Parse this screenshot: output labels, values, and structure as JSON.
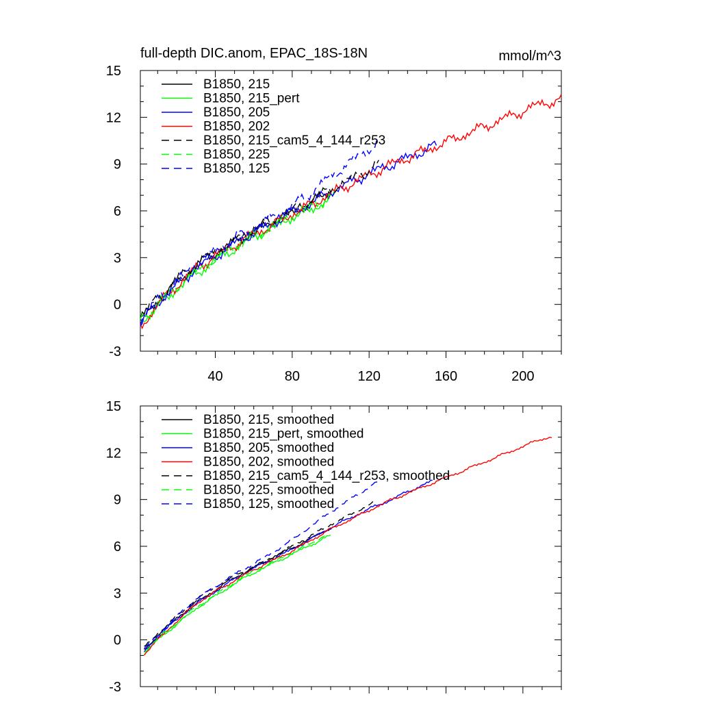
{
  "chart_data": [
    {
      "type": "line",
      "title": "full-depth DIC.anom, EPAC_18S-18N",
      "units_label": "mmol/m^3",
      "xlim": [
        1,
        220
      ],
      "ylim": [
        -3,
        15
      ],
      "x_ticks": [
        40,
        80,
        120,
        160,
        200
      ],
      "y_ticks": [
        -3,
        0,
        3,
        6,
        9,
        12,
        15
      ],
      "x_tick_labels": [
        "40",
        "80",
        "120",
        "160",
        "200"
      ],
      "y_tick_labels": [
        "-3",
        "0",
        "3",
        "6",
        "9",
        "12",
        "15"
      ],
      "legend_position": "top-left",
      "smoothed": false,
      "series": [
        {
          "name": "B1850, 215",
          "color": "#000000",
          "dash": "solid",
          "x": [
            1,
            10,
            20,
            30,
            40,
            50,
            60,
            70,
            80,
            90,
            100
          ],
          "y": [
            -1.0,
            0.2,
            1.4,
            2.5,
            3.3,
            4.0,
            4.7,
            5.3,
            5.9,
            6.5,
            7.3
          ]
        },
        {
          "name": "B1850, 215_pert",
          "color": "#00ff00",
          "dash": "solid",
          "x": [
            1,
            10,
            20,
            30,
            40,
            50,
            60,
            70,
            80,
            90,
            102
          ],
          "y": [
            -1.2,
            -0.1,
            1.0,
            2.0,
            2.8,
            3.6,
            4.3,
            5.0,
            5.6,
            6.1,
            6.9
          ]
        },
        {
          "name": "B1850, 205",
          "color": "#0000ff",
          "dash": "solid",
          "x": [
            1,
            10,
            20,
            30,
            40,
            50,
            60,
            70,
            80,
            90,
            100,
            110,
            120,
            130,
            140,
            155
          ],
          "y": [
            -1.3,
            0.1,
            1.2,
            2.3,
            3.1,
            3.9,
            4.6,
            5.2,
            5.9,
            6.5,
            7.2,
            7.8,
            8.4,
            8.9,
            9.4,
            10.2
          ]
        },
        {
          "name": "B1850, 202",
          "color": "#ff0000",
          "dash": "solid",
          "x": [
            1,
            10,
            20,
            30,
            40,
            50,
            60,
            70,
            80,
            90,
            100,
            110,
            120,
            130,
            140,
            150,
            160,
            170,
            180,
            190,
            200,
            210,
            220
          ],
          "y": [
            -1.5,
            0.0,
            1.2,
            2.3,
            3.1,
            3.8,
            4.5,
            5.1,
            5.8,
            6.4,
            7.1,
            7.7,
            8.3,
            8.9,
            9.4,
            9.9,
            10.4,
            10.9,
            11.4,
            11.9,
            12.4,
            12.9,
            13.1
          ]
        },
        {
          "name": "B1850, 215_cam5_4_144_r253",
          "color": "#000000",
          "dash": "dash",
          "x": [
            1,
            10,
            20,
            30,
            40,
            50,
            60,
            70,
            80,
            90,
            100,
            110,
            120,
            125
          ],
          "y": [
            -0.8,
            0.4,
            1.6,
            2.6,
            3.4,
            4.1,
            4.8,
            5.4,
            6.0,
            6.7,
            7.4,
            8.0,
            8.7,
            9.0
          ]
        },
        {
          "name": "B1850, 225",
          "color": "#00ff00",
          "dash": "dash",
          "x": [
            1,
            10,
            20,
            30,
            40,
            50,
            60,
            70,
            80,
            90,
            100
          ],
          "y": [
            -1.1,
            0.0,
            1.1,
            2.1,
            2.9,
            3.7,
            4.4,
            5.0,
            5.7,
            6.2,
            7.0
          ]
        },
        {
          "name": "B1850, 125",
          "color": "#0000ff",
          "dash": "dash",
          "x": [
            1,
            10,
            20,
            30,
            40,
            50,
            60,
            70,
            80,
            90,
            100,
            110,
            120,
            125
          ],
          "y": [
            -1.0,
            0.3,
            1.5,
            2.6,
            3.4,
            4.2,
            4.9,
            5.6,
            6.3,
            7.2,
            8.2,
            9.1,
            10.0,
            10.4
          ]
        }
      ]
    },
    {
      "type": "line",
      "title": "",
      "xlim": [
        1,
        220
      ],
      "ylim": [
        -3,
        15
      ],
      "y_ticks": [
        -3,
        0,
        3,
        6,
        9,
        12,
        15
      ],
      "y_tick_labels": [
        "-3",
        "0",
        "3",
        "6",
        "9",
        "12",
        "15"
      ],
      "legend_position": "top-left",
      "smoothed": true,
      "series": [
        {
          "name": "B1850, 215, smoothed",
          "color": "#000000",
          "dash": "solid",
          "x": [
            3,
            10,
            20,
            30,
            40,
            50,
            60,
            70,
            80,
            90,
            100
          ],
          "y": [
            -0.7,
            0.3,
            1.4,
            2.4,
            3.2,
            4.0,
            4.6,
            5.3,
            5.9,
            6.5,
            7.2
          ]
        },
        {
          "name": "B1850, 215_pert, smoothed",
          "color": "#00ff00",
          "dash": "solid",
          "x": [
            3,
            10,
            20,
            30,
            40,
            50,
            60,
            70,
            80,
            90,
            100
          ],
          "y": [
            -0.9,
            0.0,
            1.0,
            2.0,
            2.8,
            3.6,
            4.3,
            4.9,
            5.5,
            6.1,
            6.7
          ]
        },
        {
          "name": "B1850, 205, smoothed",
          "color": "#0000ff",
          "dash": "solid",
          "x": [
            3,
            10,
            20,
            30,
            40,
            50,
            60,
            70,
            80,
            90,
            100,
            110,
            120,
            130,
            140,
            153
          ],
          "y": [
            -0.8,
            0.2,
            1.3,
            2.3,
            3.1,
            3.9,
            4.6,
            5.2,
            5.8,
            6.5,
            7.2,
            7.8,
            8.4,
            8.9,
            9.5,
            10.2
          ]
        },
        {
          "name": "B1850, 202, smoothed",
          "color": "#ff0000",
          "dash": "solid",
          "x": [
            3,
            10,
            20,
            30,
            40,
            50,
            60,
            70,
            80,
            90,
            100,
            110,
            120,
            130,
            140,
            150,
            160,
            170,
            180,
            190,
            200,
            210,
            215
          ],
          "y": [
            -0.9,
            0.0,
            1.2,
            2.3,
            3.1,
            3.8,
            4.5,
            5.1,
            5.7,
            6.4,
            7.1,
            7.7,
            8.3,
            8.9,
            9.4,
            9.9,
            10.4,
            10.9,
            11.4,
            11.9,
            12.4,
            12.9,
            13.0
          ]
        },
        {
          "name": "B1850, 215_cam5_4_144_r253, smoothed",
          "color": "#000000",
          "dash": "dash",
          "x": [
            3,
            10,
            20,
            30,
            40,
            50,
            60,
            70,
            80,
            90,
            100,
            110,
            122
          ],
          "y": [
            -0.5,
            0.4,
            1.5,
            2.6,
            3.4,
            4.1,
            4.7,
            5.3,
            6.0,
            6.7,
            7.4,
            8.0,
            8.8
          ]
        },
        {
          "name": "B1850, 225, smoothed",
          "color": "#00ff00",
          "dash": "dash",
          "x": [
            3,
            10,
            20,
            30,
            40,
            50,
            60,
            70,
            80,
            90,
            98
          ],
          "y": [
            -0.8,
            0.1,
            1.1,
            2.1,
            2.9,
            3.7,
            4.4,
            5.0,
            5.6,
            6.2,
            6.8
          ]
        },
        {
          "name": "B1850, 125, smoothed",
          "color": "#0000ff",
          "dash": "dash",
          "x": [
            3,
            10,
            20,
            30,
            40,
            50,
            60,
            70,
            80,
            90,
            100,
            110,
            120,
            125
          ],
          "y": [
            -0.6,
            0.3,
            1.5,
            2.6,
            3.4,
            4.2,
            4.9,
            5.6,
            6.4,
            7.3,
            8.2,
            9.0,
            9.8,
            10.2
          ]
        }
      ]
    }
  ]
}
